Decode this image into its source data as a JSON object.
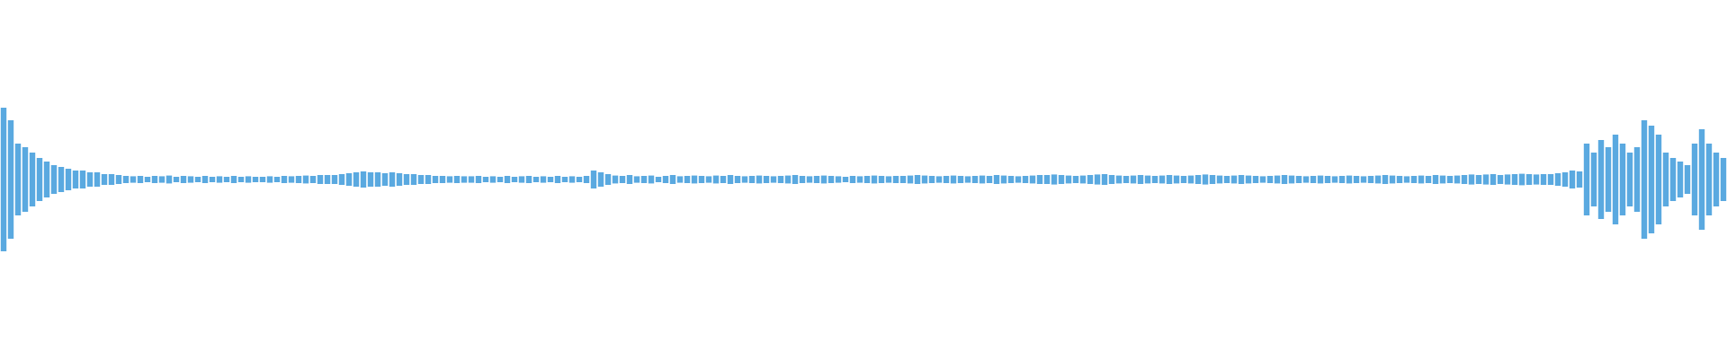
{
  "chart_data": {
    "type": "waveform",
    "color": "#5aa9e0",
    "ylim": [
      -1,
      1
    ],
    "values": [
      0.4,
      0.33,
      0.2,
      0.18,
      0.15,
      0.12,
      0.1,
      0.08,
      0.07,
      0.06,
      0.05,
      0.05,
      0.04,
      0.04,
      0.03,
      0.03,
      0.025,
      0.02,
      0.018,
      0.02,
      0.015,
      0.02,
      0.018,
      0.022,
      0.015,
      0.02,
      0.018,
      0.015,
      0.02,
      0.015,
      0.018,
      0.015,
      0.02,
      0.015,
      0.018,
      0.015,
      0.015,
      0.018,
      0.015,
      0.02,
      0.018,
      0.02,
      0.022,
      0.02,
      0.025,
      0.025,
      0.025,
      0.03,
      0.035,
      0.04,
      0.045,
      0.04,
      0.04,
      0.035,
      0.04,
      0.035,
      0.03,
      0.03,
      0.025,
      0.025,
      0.02,
      0.02,
      0.018,
      0.02,
      0.018,
      0.018,
      0.02,
      0.015,
      0.018,
      0.015,
      0.02,
      0.015,
      0.018,
      0.02,
      0.015,
      0.018,
      0.015,
      0.02,
      0.015,
      0.018,
      0.015,
      0.02,
      0.05,
      0.04,
      0.03,
      0.022,
      0.02,
      0.025,
      0.018,
      0.02,
      0.022,
      0.015,
      0.02,
      0.025,
      0.018,
      0.02,
      0.022,
      0.02,
      0.018,
      0.022,
      0.02,
      0.025,
      0.02,
      0.018,
      0.02,
      0.022,
      0.02,
      0.018,
      0.02,
      0.022,
      0.025,
      0.02,
      0.018,
      0.02,
      0.022,
      0.02,
      0.018,
      0.015,
      0.02,
      0.018,
      0.02,
      0.022,
      0.02,
      0.018,
      0.02,
      0.02,
      0.022,
      0.025,
      0.022,
      0.02,
      0.018,
      0.02,
      0.022,
      0.02,
      0.018,
      0.02,
      0.022,
      0.02,
      0.025,
      0.022,
      0.02,
      0.018,
      0.02,
      0.022,
      0.025,
      0.025,
      0.028,
      0.025,
      0.022,
      0.02,
      0.022,
      0.025,
      0.028,
      0.03,
      0.025,
      0.022,
      0.02,
      0.022,
      0.025,
      0.022,
      0.02,
      0.022,
      0.025,
      0.022,
      0.02,
      0.022,
      0.025,
      0.028,
      0.025,
      0.022,
      0.02,
      0.022,
      0.025,
      0.022,
      0.02,
      0.018,
      0.02,
      0.022,
      0.025,
      0.022,
      0.02,
      0.018,
      0.02,
      0.022,
      0.02,
      0.018,
      0.02,
      0.022,
      0.02,
      0.018,
      0.02,
      0.022,
      0.025,
      0.022,
      0.02,
      0.018,
      0.02,
      0.022,
      0.02,
      0.025,
      0.022,
      0.02,
      0.022,
      0.025,
      0.028,
      0.025,
      0.028,
      0.03,
      0.025,
      0.028,
      0.03,
      0.032,
      0.03,
      0.028,
      0.03,
      0.03,
      0.035,
      0.04,
      0.05,
      0.045,
      0.2,
      0.15,
      0.22,
      0.18,
      0.25,
      0.2,
      0.15,
      0.18,
      0.33,
      0.3,
      0.25,
      0.15,
      0.12,
      0.1,
      0.08,
      0.2,
      0.28,
      0.2,
      0.15,
      0.12
    ]
  }
}
